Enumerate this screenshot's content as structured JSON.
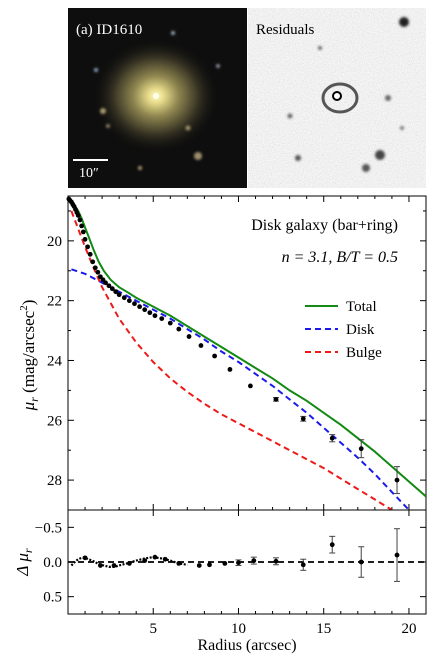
{
  "image_panel": {
    "galaxy_label": "(a) ID1610",
    "residual_label": "Residuals",
    "scale_label": "10″"
  },
  "chart_data": [
    {
      "type": "line",
      "annotation_title": "Disk galaxy (bar+ring)",
      "annotation_params": "n = 3.1,  B/T = 0.5",
      "ylabel_base": "μ",
      "ylabel_sub": "r",
      "ylabel_rest": " (mag/arcsec",
      "ylabel_sup": "2",
      "ylabel_close": ")",
      "xlim": [
        0,
        21
      ],
      "ylim": [
        29,
        18.5
      ],
      "y_inverted": true,
      "yticks": [
        20,
        22,
        24,
        26,
        28
      ],
      "legend_position": "right",
      "series": [
        {
          "name": "Total",
          "style": "solid",
          "color": "#138a13",
          "x": [
            0.2,
            0.4,
            0.6,
            0.8,
            1.0,
            1.2,
            1.5,
            1.8,
            2.1,
            2.5,
            3.0,
            3.5,
            4.0,
            5,
            6,
            7,
            8,
            9,
            10,
            11,
            12,
            13,
            14,
            15,
            16,
            17,
            18,
            19,
            20,
            21
          ],
          "y": [
            18.7,
            18.82,
            19.0,
            19.25,
            19.55,
            19.85,
            20.3,
            20.7,
            21.0,
            21.3,
            21.55,
            21.72,
            21.9,
            22.2,
            22.5,
            22.85,
            23.2,
            23.55,
            23.9,
            24.25,
            24.6,
            25.0,
            25.35,
            25.75,
            26.15,
            26.6,
            27.05,
            27.55,
            28.05,
            28.55
          ]
        },
        {
          "name": "Disk",
          "style": "dashed",
          "color": "#1a1aee",
          "x": [
            0.2,
            1,
            2,
            3,
            4,
            5,
            6,
            7,
            8,
            9,
            10,
            11,
            12,
            13,
            14,
            15,
            16,
            17,
            18,
            19,
            20
          ],
          "y": [
            20.95,
            21.1,
            21.4,
            21.7,
            22.0,
            22.3,
            22.6,
            22.95,
            23.3,
            23.7,
            24.05,
            24.45,
            24.85,
            25.3,
            25.75,
            26.25,
            26.75,
            27.25,
            27.8,
            28.4,
            29.0
          ]
        },
        {
          "name": "Bulge",
          "style": "dashed",
          "color": "#ee1a1a",
          "x": [
            0.2,
            0.5,
            1.0,
            1.5,
            2.0,
            3.0,
            4.0,
            5,
            6,
            7,
            8,
            9,
            10,
            11,
            12,
            13,
            14,
            15,
            16,
            17,
            18,
            19
          ],
          "y": [
            19.0,
            19.45,
            20.2,
            20.9,
            21.55,
            22.6,
            23.4,
            24.05,
            24.6,
            25.05,
            25.45,
            25.8,
            26.1,
            26.4,
            26.7,
            27.0,
            27.3,
            27.6,
            27.95,
            28.3,
            28.65,
            29.0
          ]
        }
      ],
      "points": {
        "x": [
          0.05,
          0.12,
          0.2,
          0.28,
          0.36,
          0.44,
          0.52,
          0.6,
          0.7,
          0.8,
          0.9,
          1.0,
          1.15,
          1.3,
          1.45,
          1.6,
          1.75,
          1.9,
          2.05,
          2.2,
          2.4,
          2.6,
          2.8,
          3.0,
          3.3,
          3.6,
          3.9,
          4.2,
          4.5,
          4.8,
          5.1,
          5.5,
          6.0,
          6.5,
          7.1,
          7.8,
          8.6,
          9.5,
          10.7,
          12.2,
          13.8,
          15.5,
          17.2,
          19.3
        ],
        "y": [
          18.6,
          18.65,
          18.7,
          18.78,
          18.85,
          18.95,
          19.05,
          19.15,
          19.3,
          19.5,
          19.7,
          19.95,
          20.2,
          20.45,
          20.7,
          20.9,
          21.05,
          21.2,
          21.3,
          21.4,
          21.5,
          21.6,
          21.7,
          21.8,
          21.9,
          22.0,
          22.1,
          22.2,
          22.3,
          22.4,
          22.5,
          22.6,
          22.75,
          22.95,
          23.2,
          23.5,
          23.85,
          24.3,
          24.85,
          25.3,
          25.95,
          26.6,
          26.95,
          28.0
        ],
        "err": [
          0,
          0,
          0,
          0,
          0,
          0,
          0,
          0,
          0,
          0,
          0,
          0,
          0,
          0,
          0,
          0,
          0,
          0,
          0,
          0,
          0,
          0,
          0,
          0,
          0,
          0,
          0,
          0,
          0,
          0,
          0,
          0,
          0,
          0,
          0,
          0,
          0,
          0,
          0,
          0.06,
          0.08,
          0.12,
          0.3,
          0.45
        ]
      }
    },
    {
      "type": "scatter",
      "xlabel": "Radius (arcsec)",
      "ylabel_base": "Δ μ",
      "ylabel_sub": "r",
      "xlim": [
        0,
        21
      ],
      "ylim": [
        0.75,
        -0.75
      ],
      "y_inverted": true,
      "xticks": [
        5,
        10,
        15,
        20
      ],
      "yticks": [
        -0.5,
        0.0,
        0.5
      ],
      "yticklabels": [
        "−0.5",
        "0.0",
        "0.5"
      ],
      "reference_line": 0,
      "curve": {
        "x": [
          0.2,
          0.4,
          0.6,
          0.8,
          1.0,
          1.2,
          1.5,
          1.8,
          2.1,
          2.4,
          2.7,
          3.0,
          3.3,
          3.6,
          4.0,
          4.5,
          5.0,
          5.5,
          6.0,
          6.5,
          7.0
        ],
        "y": [
          0.05,
          0.0,
          -0.04,
          -0.06,
          -0.06,
          -0.04,
          -0.01,
          0.03,
          0.05,
          0.07,
          0.07,
          0.05,
          0.03,
          0.01,
          -0.02,
          -0.05,
          -0.07,
          -0.05,
          -0.02,
          0.02,
          0.04
        ]
      },
      "points": {
        "x": [
          1.0,
          1.9,
          2.7,
          3.6,
          4.5,
          5.1,
          5.7,
          6.5,
          7.7,
          8.3,
          9.2,
          10.0,
          10.9,
          12.2,
          13.8,
          15.5,
          17.2,
          19.3
        ],
        "y": [
          -0.06,
          0.05,
          0.05,
          0.02,
          -0.02,
          -0.07,
          -0.04,
          0.02,
          0.05,
          0.04,
          0.02,
          0.01,
          -0.02,
          -0.01,
          0.04,
          -0.25,
          0.0,
          -0.1
        ],
        "err": [
          0,
          0,
          0,
          0,
          0,
          0,
          0,
          0,
          0,
          0,
          0,
          0.04,
          0.05,
          0.05,
          0.08,
          0.12,
          0.22,
          0.38
        ]
      }
    }
  ]
}
